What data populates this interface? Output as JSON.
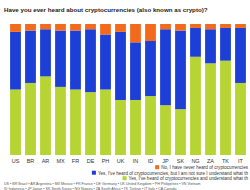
{
  "chart_data": {
    "type": "bar",
    "stacked": true,
    "tick_labels": "x",
    "grid": false,
    "title": "Have you ever heard about cryptocurrencies (also known as crypto)?",
    "categories": [
      "US",
      "BR",
      "AR",
      "MX",
      "FR",
      "DE",
      "PH",
      "UK",
      "IN",
      "ID",
      "JP",
      "SK",
      "NG",
      "ZA",
      "TK",
      "IT"
    ],
    "ylim": [
      0,
      100
    ],
    "series": [
      {
        "name": "Yes, I've heard of cryptocurrencies and understand what th",
        "color": "#b6d433",
        "values": [
          50,
          55,
          60,
          52,
          50,
          48,
          50,
          42,
          42,
          45,
          38,
          35,
          75,
          70,
          72,
          55
        ]
      },
      {
        "name": "Yes, I've heard of cryptocurrencies, but I am not sure I understand what th",
        "color": "#1d3fd6",
        "values": [
          44,
          40,
          36,
          43,
          45,
          48,
          42,
          52,
          44,
          42,
          58,
          60,
          22,
          26,
          25,
          42
        ]
      },
      {
        "name": "No, I have never heard of cryptocurrencies",
        "color": "#f26a1b",
        "values": [
          6,
          5,
          4,
          5,
          5,
          4,
          8,
          6,
          14,
          13,
          4,
          5,
          3,
          4,
          3,
          3
        ]
      }
    ],
    "footnote": [
      "US • BR Brazil • AR Argentina • MX Mexico • FR France • DE Germany • UK United Kingdom • PH Philippines • VN Vietnam",
      "ID Indonesia • JP Japan • SK South Korea • NG Nigeria • ZA South Africa • TK Türkiye • IT Italy • CA Canada"
    ]
  }
}
